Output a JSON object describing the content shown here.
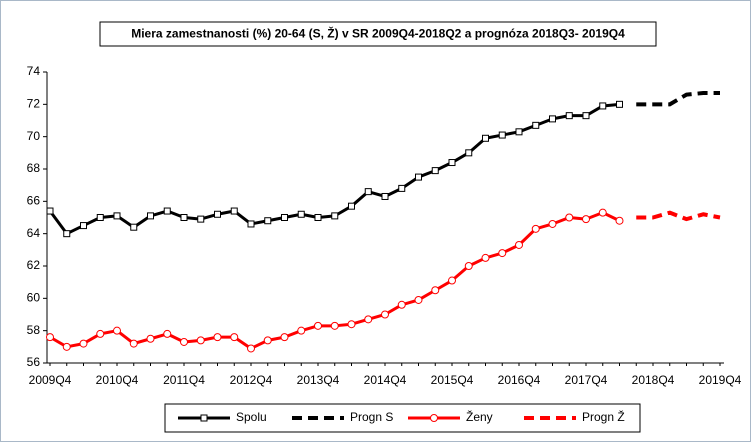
{
  "chart_data": {
    "type": "line",
    "title": "Miera zamestnanosti (%) 20-64 (S, Ž) v SR 2009Q4-2018Q2  a prognóza 2018Q3- 2019Q4",
    "categories": [
      "2009Q4",
      null,
      null,
      null,
      "2010Q4",
      null,
      null,
      null,
      "2011Q4",
      null,
      null,
      null,
      "2012Q4",
      null,
      null,
      null,
      "2013Q4",
      null,
      null,
      null,
      "2014Q4",
      null,
      null,
      null,
      "2015Q4",
      null,
      null,
      null,
      "2016Q4",
      null,
      null,
      null,
      "2017Q4",
      null,
      null,
      null,
      "2018Q4",
      null,
      null,
      null,
      "2019Q4"
    ],
    "series": [
      {
        "name": "Spolu",
        "color": "#000000",
        "marker": "square",
        "values": [
          65.4,
          64.0,
          64.5,
          65.0,
          65.1,
          64.4,
          65.1,
          65.4,
          65.0,
          64.9,
          65.2,
          65.4,
          64.6,
          64.8,
          65.0,
          65.2,
          65.0,
          65.1,
          65.7,
          66.6,
          66.3,
          66.8,
          67.5,
          67.9,
          68.4,
          69.0,
          69.9,
          70.1,
          70.3,
          70.7,
          71.1,
          71.3,
          71.3,
          71.9,
          72.0,
          null,
          null,
          null,
          null,
          null,
          null
        ]
      },
      {
        "name": "Progn S",
        "color": "#000000",
        "dashed": true,
        "values": [
          null,
          null,
          null,
          null,
          null,
          null,
          null,
          null,
          null,
          null,
          null,
          null,
          null,
          null,
          null,
          null,
          null,
          null,
          null,
          null,
          null,
          null,
          null,
          null,
          null,
          null,
          null,
          null,
          null,
          null,
          null,
          null,
          null,
          null,
          null,
          72.0,
          72.0,
          72.0,
          72.6,
          72.7,
          72.7
        ]
      },
      {
        "name": "Ženy",
        "color": "#ff0000",
        "marker": "circle",
        "values": [
          57.6,
          57.0,
          57.2,
          57.8,
          58.0,
          57.2,
          57.5,
          57.8,
          57.3,
          57.4,
          57.6,
          57.6,
          56.9,
          57.4,
          57.6,
          58.0,
          58.3,
          58.3,
          58.4,
          58.7,
          59.0,
          59.6,
          59.9,
          60.5,
          61.1,
          62.0,
          62.5,
          62.8,
          63.3,
          64.3,
          64.6,
          65.0,
          64.9,
          65.3,
          64.8,
          null,
          null,
          null,
          null,
          null,
          null
        ]
      },
      {
        "name": "Progn Ž",
        "color": "#ff0000",
        "dashed": true,
        "values": [
          null,
          null,
          null,
          null,
          null,
          null,
          null,
          null,
          null,
          null,
          null,
          null,
          null,
          null,
          null,
          null,
          null,
          null,
          null,
          null,
          null,
          null,
          null,
          null,
          null,
          null,
          null,
          null,
          null,
          null,
          null,
          null,
          null,
          null,
          null,
          65.0,
          65.0,
          65.3,
          64.9,
          65.2,
          65.0
        ]
      }
    ],
    "ylim": [
      56,
      74
    ],
    "yticks": [
      56,
      58,
      60,
      62,
      64,
      66,
      68,
      70,
      72,
      74
    ],
    "grid": false,
    "legend": "bottom"
  }
}
